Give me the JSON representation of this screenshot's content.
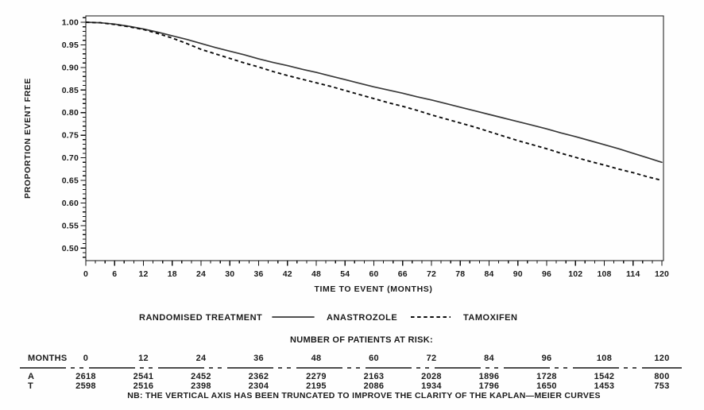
{
  "chart_data": {
    "type": "line",
    "title": "",
    "xlabel": "TIME TO EVENT (MONTHS)",
    "ylabel": "PROPORTION EVENT FREE",
    "xlim": [
      0,
      120
    ],
    "ylim": [
      0.5,
      1.0
    ],
    "x_tick_major_step": 6,
    "x_tick_minor_step": 2,
    "y_tick_major_step": 0.05,
    "y_tick_minor_step": 0.01,
    "grid": false,
    "legend_position": "bottom",
    "x": [
      0,
      3,
      6,
      9,
      12,
      15,
      18,
      21,
      24,
      27,
      30,
      33,
      36,
      39,
      42,
      45,
      48,
      51,
      54,
      57,
      60,
      63,
      66,
      69,
      72,
      75,
      78,
      81,
      84,
      87,
      90,
      93,
      96,
      99,
      102,
      105,
      108,
      111,
      114,
      117,
      120
    ],
    "series": [
      {
        "name": "ANASTROZOLE",
        "style": "solid",
        "values": [
          1.0,
          0.999,
          0.996,
          0.991,
          0.985,
          0.978,
          0.97,
          0.962,
          0.953,
          0.944,
          0.936,
          0.928,
          0.919,
          0.911,
          0.904,
          0.896,
          0.889,
          0.881,
          0.873,
          0.865,
          0.857,
          0.85,
          0.843,
          0.835,
          0.828,
          0.82,
          0.812,
          0.804,
          0.796,
          0.788,
          0.78,
          0.772,
          0.764,
          0.755,
          0.747,
          0.738,
          0.729,
          0.72,
          0.71,
          0.7,
          0.69
        ]
      },
      {
        "name": "TAMOXIFEN",
        "style": "dashed",
        "values": [
          1.0,
          0.999,
          0.995,
          0.99,
          0.984,
          0.975,
          0.965,
          0.953,
          0.94,
          0.93,
          0.92,
          0.91,
          0.901,
          0.891,
          0.882,
          0.874,
          0.866,
          0.858,
          0.849,
          0.84,
          0.831,
          0.822,
          0.814,
          0.805,
          0.795,
          0.786,
          0.777,
          0.768,
          0.758,
          0.748,
          0.738,
          0.729,
          0.72,
          0.71,
          0.701,
          0.692,
          0.684,
          0.675,
          0.667,
          0.658,
          0.65
        ]
      }
    ]
  },
  "legend": {
    "title": "RANDOMISED TREATMENT",
    "series": [
      {
        "label": "ANASTROZOLE",
        "style": "solid"
      },
      {
        "label": "TAMOXIFEN",
        "style": "dashed"
      }
    ]
  },
  "risk_table": {
    "title": "NUMBER OF PATIENTS AT RISK:",
    "row_header": "MONTHS",
    "months": [
      0,
      12,
      24,
      36,
      48,
      60,
      72,
      84,
      96,
      108,
      120
    ],
    "rows": [
      {
        "label": "A",
        "values": [
          2618,
          2541,
          2452,
          2362,
          2279,
          2163,
          2028,
          1896,
          1728,
          1542,
          800
        ]
      },
      {
        "label": "T",
        "values": [
          2598,
          2516,
          2398,
          2304,
          2195,
          2086,
          1934,
          1796,
          1650,
          1453,
          753
        ]
      }
    ]
  },
  "note": "NB: THE VERTICAL AXIS HAS BEEN TRUNCATED TO IMPROVE THE CLARITY OF THE KAPLAN—MEIER CURVES",
  "colors": {
    "background": "#fefefe",
    "text": "#1a1a1a",
    "solid_line": "#383838",
    "dashed_line": "#0d0d0d"
  }
}
